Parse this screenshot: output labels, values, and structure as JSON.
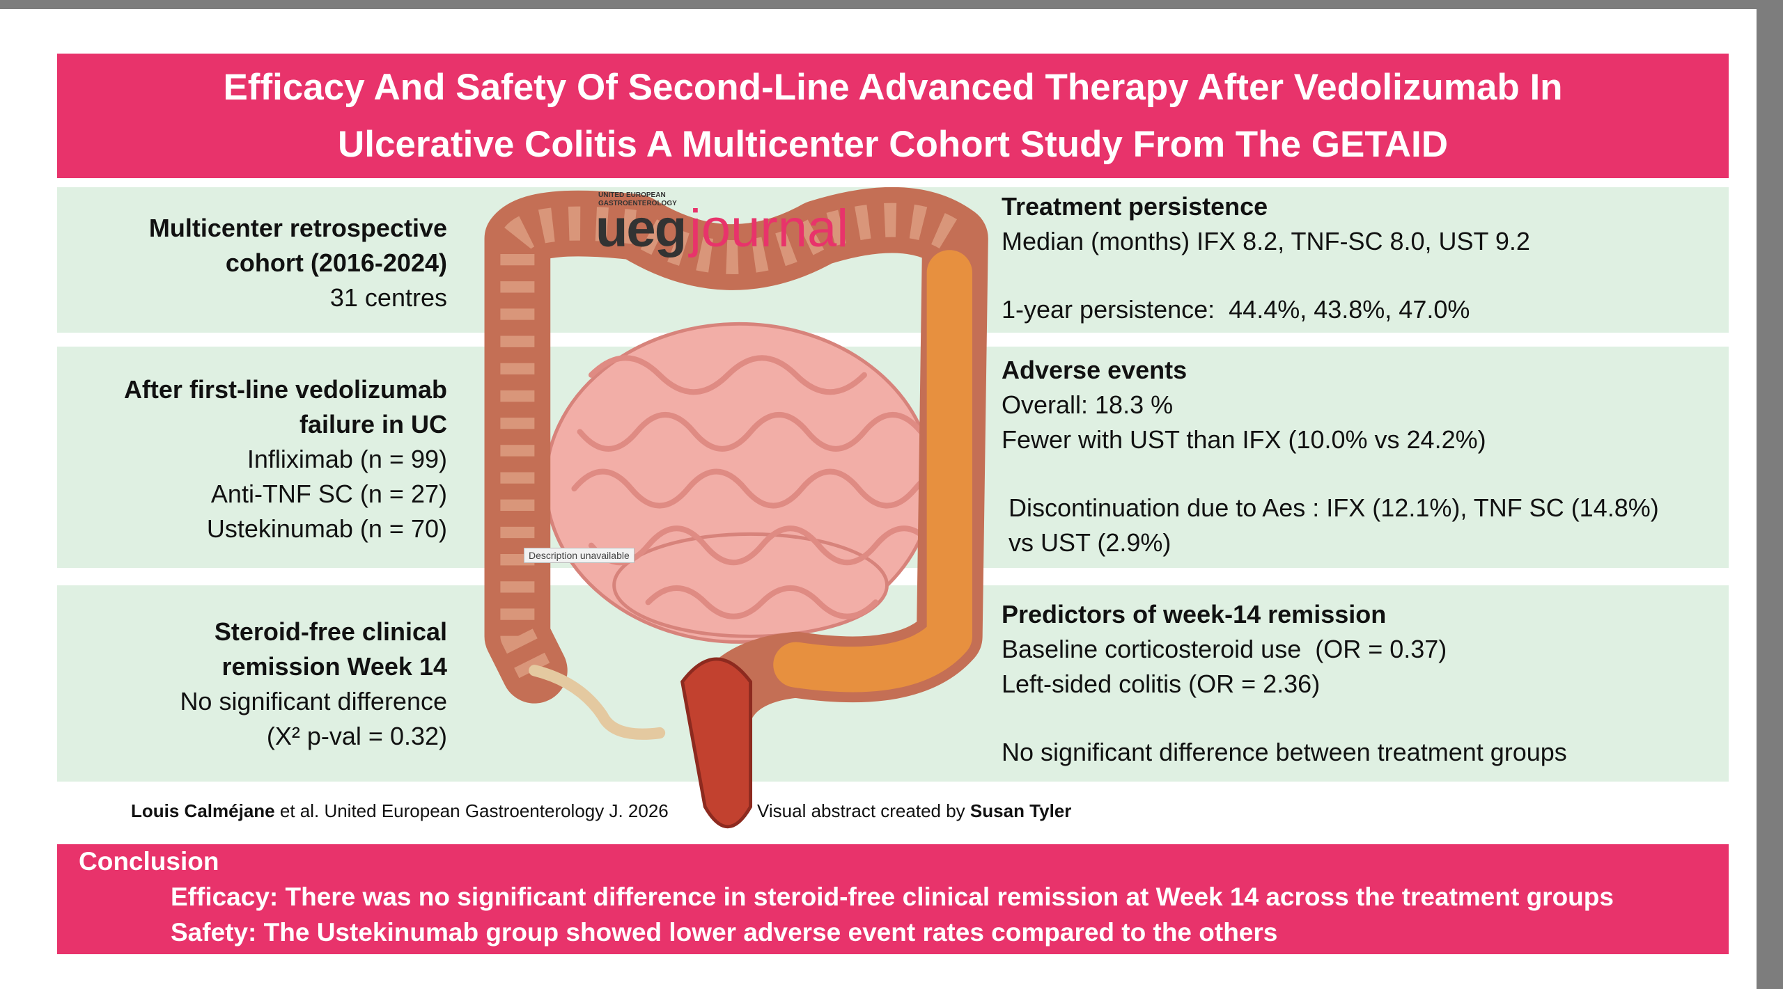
{
  "header": {
    "title_lines": [
      "Efficacy And Safety Of Second-Line Advanced Therapy After Vedolizumab In",
      "Ulcerative Colitis A Multicenter Cohort Study From The GETAID"
    ]
  },
  "logo": {
    "small_lines": [
      "UNITED EUROPEAN",
      "GASTROENTEROLOGY"
    ],
    "brand": "ueg",
    "name": "journal"
  },
  "image_caption": "Description unavailable",
  "left_panels": [
    {
      "heading": [
        "Multicenter retrospective",
        "cohort (2016-2024)"
      ],
      "lines": [
        "31 centres"
      ]
    },
    {
      "heading": [
        "After first-line vedolizumab",
        "failure in UC"
      ],
      "lines": [
        "Infliximab (n = 99)",
        "Anti-TNF SC (n = 27)",
        "Ustekinumab (n = 70)"
      ]
    },
    {
      "heading": [
        "Steroid-free clinical",
        "remission Week 14"
      ],
      "lines": [
        "No significant difference",
        "(X² p-val = 0.32)"
      ]
    }
  ],
  "right_panels": [
    {
      "heading": "Treatment persistence",
      "paragraphs": [
        [
          "Median (months) IFX 8.2, TNF-SC 8.0, UST 9.2"
        ],
        [
          "1-year persistence:  44.4%, 43.8%, 47.0%"
        ]
      ]
    },
    {
      "heading": "Adverse events",
      "paragraphs": [
        [
          "Overall: 18.3 %",
          "Fewer with UST than IFX (10.0% vs 24.2%)"
        ],
        [
          "Discontinuation due to Aes : IFX (12.1%), TNF SC (14.8%)",
          "vs UST (2.9%)"
        ]
      ]
    },
    {
      "heading": "Predictors of week-14 remission",
      "paragraphs": [
        [
          "Baseline corticosteroid use  (OR = 0.37)",
          "Left-sided colitis (OR = 2.36)"
        ],
        [
          "No significant difference between treatment groups"
        ]
      ]
    }
  ],
  "credits": {
    "author": "Louis Calméjane",
    "citation": "et al. United European Gastroenterology J. 2026",
    "created_by": "Visual abstract created by",
    "creator": "Susan Tyler"
  },
  "conclusion": {
    "heading": "Conclusion",
    "lines": [
      "Efficacy: There was no significant difference in steroid-free clinical remission at Week 14 across the treatment groups",
      "Safety: The Ustekinumab group showed lower adverse event rates compared to the others"
    ]
  }
}
